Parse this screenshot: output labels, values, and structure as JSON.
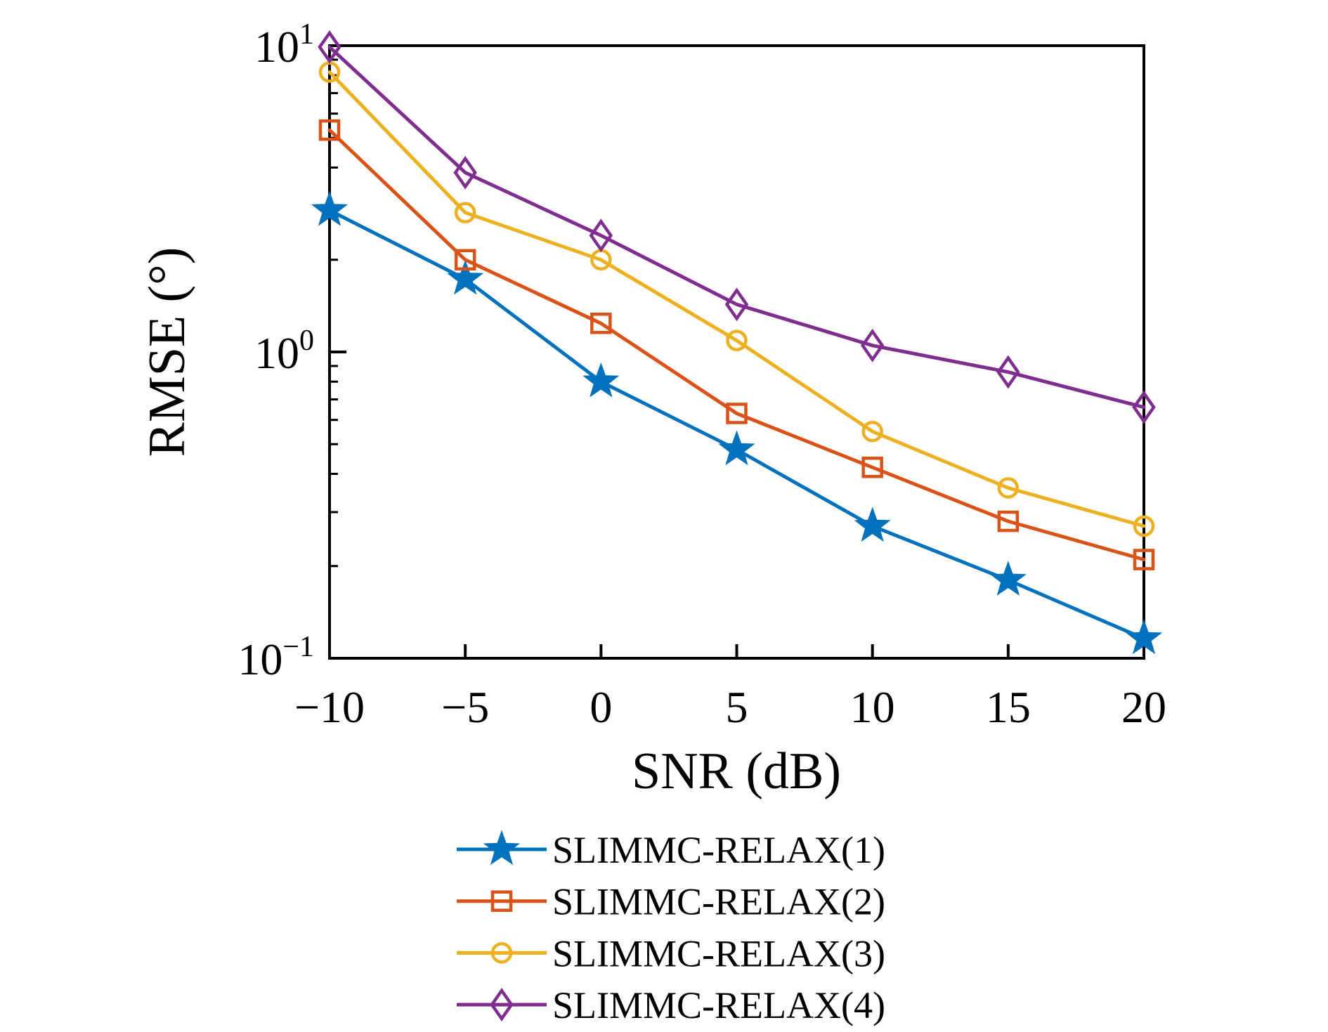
{
  "figure": {
    "background": "#ffffff",
    "axis_color": "#000000"
  },
  "chart_data": {
    "type": "line",
    "title": "",
    "xlabel": "SNR (dB)",
    "ylabel": "RMSE (°)",
    "x_scale": "linear",
    "y_scale": "log",
    "xlim": [
      -10,
      20
    ],
    "ylim": [
      0.1,
      10
    ],
    "grid": false,
    "legend_position": "below-plot",
    "x": [
      -10,
      -5,
      0,
      5,
      10,
      15,
      20
    ],
    "x_tick_labels": [
      "−10",
      "−5",
      "0",
      "5",
      "10",
      "15",
      "20"
    ],
    "y_ticks": [
      {
        "value": 10,
        "label_base": "10",
        "label_exp": "1"
      },
      {
        "value": 1,
        "label_base": "10",
        "label_exp": "0"
      },
      {
        "value": 0.1,
        "label_base": "10",
        "label_exp": "−1"
      }
    ],
    "series": [
      {
        "name": "SLIMMC-RELAX(1)",
        "color": "#0072BD",
        "marker": "star",
        "marker_fill": "filled",
        "values": [
          2.9,
          1.73,
          0.8,
          0.48,
          0.27,
          0.18,
          0.116
        ]
      },
      {
        "name": "SLIMMC-RELAX(2)",
        "color": "#D95319",
        "marker": "square",
        "marker_fill": "open",
        "values": [
          5.3,
          2.0,
          1.24,
          0.63,
          0.42,
          0.28,
          0.21
        ]
      },
      {
        "name": "SLIMMC-RELAX(3)",
        "color": "#EDB120",
        "marker": "circle",
        "marker_fill": "open",
        "values": [
          8.2,
          2.85,
          2.0,
          1.09,
          0.55,
          0.36,
          0.27
        ]
      },
      {
        "name": "SLIMMC-RELAX(4)",
        "color": "#802D90",
        "marker": "diamond",
        "marker_fill": "open",
        "values": [
          9.9,
          3.85,
          2.4,
          1.43,
          1.05,
          0.86,
          0.66
        ]
      }
    ]
  }
}
